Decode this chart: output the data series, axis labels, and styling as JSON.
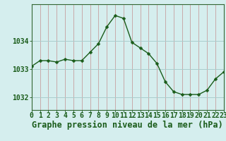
{
  "hours": [
    0,
    1,
    2,
    3,
    4,
    5,
    6,
    7,
    8,
    9,
    10,
    11,
    12,
    13,
    14,
    15,
    16,
    17,
    18,
    19,
    20,
    21,
    22,
    23
  ],
  "pressure": [
    1033.1,
    1033.3,
    1033.3,
    1033.25,
    1033.35,
    1033.3,
    1033.3,
    1033.6,
    1033.9,
    1034.5,
    1034.9,
    1034.8,
    1033.95,
    1033.75,
    1033.55,
    1033.2,
    1032.55,
    1032.2,
    1032.1,
    1032.1,
    1032.1,
    1032.25,
    1032.65,
    1032.9
  ],
  "line_color": "#1a5c1a",
  "marker": "D",
  "marker_size": 2.5,
  "bg_color": "#d5eeee",
  "vgrid_color": "#c8aaaa",
  "hgrid_color": "#aacccc",
  "axis_color": "#1a5c1a",
  "xlabel": "Graphe pression niveau de la mer (hPa)",
  "xlabel_fontsize": 8.5,
  "ylabel_ticks": [
    1032,
    1033,
    1034
  ],
  "xlim": [
    0,
    23
  ],
  "ylim": [
    1031.55,
    1035.3
  ],
  "tick_fontsize": 7,
  "spine_color": "#336633"
}
